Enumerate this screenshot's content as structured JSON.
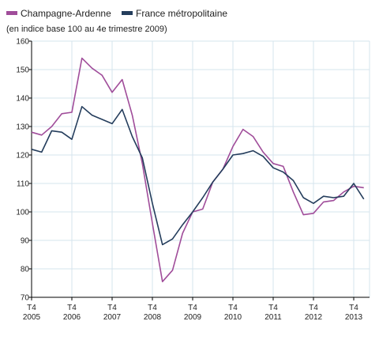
{
  "chart_data": {
    "type": "line",
    "subtitle": "(en indice base 100 au 4e trimestre 2009)",
    "legend_position": "top-left",
    "grid": true,
    "ylim": [
      70,
      160
    ],
    "y_ticks": [
      70,
      80,
      90,
      100,
      110,
      120,
      130,
      140,
      150,
      160
    ],
    "x_ticks": [
      {
        "quarter": "T4",
        "year": "2005"
      },
      {
        "quarter": "T4",
        "year": "2006"
      },
      {
        "quarter": "T4",
        "year": "2007"
      },
      {
        "quarter": "T4",
        "year": "2008"
      },
      {
        "quarter": "T4",
        "year": "2009"
      },
      {
        "quarter": "T4",
        "year": "2010"
      },
      {
        "quarter": "T4",
        "year": "2011"
      },
      {
        "quarter": "T4",
        "year": "2012"
      },
      {
        "quarter": "T4",
        "year": "2013"
      }
    ],
    "x": [
      "T4 2005",
      "T1 2006",
      "T2 2006",
      "T3 2006",
      "T4 2006",
      "T1 2007",
      "T2 2007",
      "T3 2007",
      "T4 2007",
      "T1 2008",
      "T2 2008",
      "T3 2008",
      "T4 2008",
      "T1 2009",
      "T2 2009",
      "T3 2009",
      "T4 2009",
      "T1 2010",
      "T2 2010",
      "T3 2010",
      "T4 2010",
      "T1 2011",
      "T2 2011",
      "T3 2011",
      "T4 2011",
      "T1 2012",
      "T2 2012",
      "T3 2012",
      "T4 2012",
      "T1 2013",
      "T2 2013",
      "T3 2013",
      "T4 2013",
      "T1 2014"
    ],
    "series": [
      {
        "name": "Champagne-Ardenne",
        "color": "#a04d9a",
        "values": [
          128,
          127,
          130,
          134.5,
          135,
          154,
          150.5,
          148,
          142,
          146.5,
          134,
          117,
          96,
          75.5,
          79.5,
          92.5,
          100,
          101,
          110.5,
          115,
          123,
          129,
          126.5,
          121,
          117,
          116,
          107,
          99,
          99.5,
          103.5,
          104,
          107,
          109,
          108.5
        ]
      },
      {
        "name": "France métropolitaine",
        "color": "#243d5c",
        "values": [
          122,
          121,
          128.5,
          128,
          125.5,
          137,
          134,
          132.5,
          131,
          136,
          126.5,
          119,
          103,
          88.5,
          90.5,
          95.5,
          100,
          105,
          110.5,
          115,
          120,
          120.5,
          121.5,
          119.5,
          115.5,
          114,
          111,
          105,
          103,
          105.5,
          105,
          105.5,
          110,
          104.5
        ]
      }
    ]
  }
}
